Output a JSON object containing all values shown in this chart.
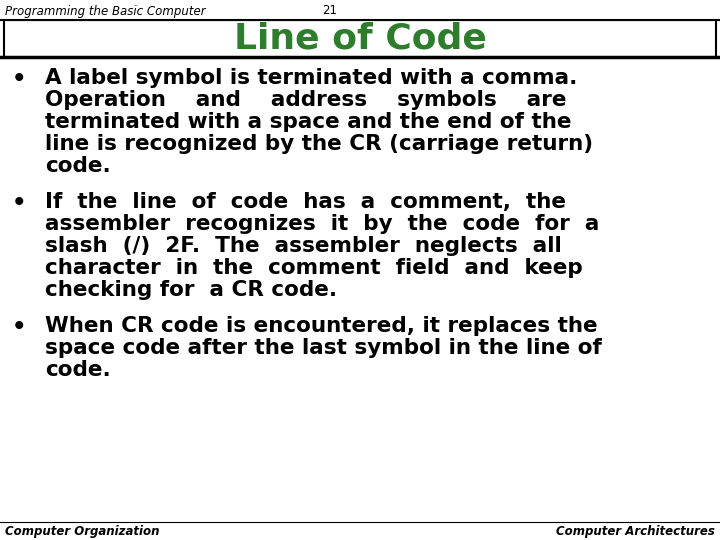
{
  "header_left": "Programming the Basic Computer",
  "header_center": "21",
  "title": "Line of Code",
  "title_color": "#2D7D2D",
  "footer_left": "Computer Organization",
  "footer_right": "Computer Architectures",
  "background_color": "#FFFFFF",
  "header_fontsize": 8.5,
  "title_fontsize": 26,
  "bullet_fontsize": 15.5,
  "footer_fontsize": 8.5,
  "bullet1_lines": [
    "A label symbol is terminated with a comma.",
    "Operation    and    address    symbols    are",
    "terminated with a space and the end of the",
    "line is recognized by the CR (carriage return)",
    "code."
  ],
  "bullet2_lines": [
    "If  the  line  of  code  has  a  comment,  the",
    "assembler  recognizes  it  by  the  code  for  a",
    "slash  (/)  2F.  The  assembler  neglects  all",
    "character  in  the  comment  field  and  keep",
    "checking for  a CR code."
  ],
  "bullet3_lines": [
    "When CR code is encountered, it replaces the",
    "space code after the last symbol in the line of",
    "code."
  ]
}
